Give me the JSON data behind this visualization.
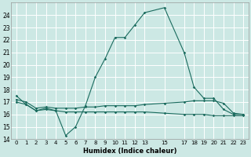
{
  "title": "",
  "xlabel": "Humidex (Indice chaleur)",
  "ylabel": "",
  "background_color": "#cce8e4",
  "grid_color": "#ffffff",
  "line_color": "#1a6b5e",
  "xlim": [
    -0.5,
    23.5
  ],
  "ylim": [
    14,
    25
  ],
  "yticks": [
    14,
    15,
    16,
    17,
    18,
    19,
    20,
    21,
    22,
    23,
    24
  ],
  "xtick_positions": [
    0,
    1,
    2,
    3,
    4,
    5,
    6,
    7,
    8,
    9,
    10,
    11,
    12,
    13,
    15,
    17,
    18,
    19,
    20,
    21,
    22,
    23
  ],
  "xtick_labels": [
    "0",
    "1",
    "2",
    "3",
    "4",
    "5",
    "6",
    "7",
    "8",
    "9",
    "10",
    "11",
    "12",
    "13",
    "15",
    "17",
    "18",
    "19",
    "20",
    "21",
    "22",
    "23"
  ],
  "series1_x": [
    0,
    1,
    2,
    3,
    4,
    5,
    6,
    7,
    8,
    9,
    10,
    11,
    12,
    13,
    15,
    17,
    18,
    19,
    20,
    21,
    22,
    23
  ],
  "series1_y": [
    17.5,
    16.8,
    16.3,
    16.5,
    16.3,
    14.3,
    15.0,
    16.7,
    19.0,
    20.5,
    22.2,
    22.2,
    23.2,
    24.2,
    24.6,
    21.0,
    18.2,
    17.3,
    17.3,
    16.4,
    16.0,
    16.0
  ],
  "series2_x": [
    0,
    1,
    2,
    3,
    4,
    5,
    6,
    7,
    8,
    9,
    10,
    11,
    12,
    13,
    15,
    17,
    18,
    19,
    20,
    21,
    22,
    23
  ],
  "series2_y": [
    17.2,
    17.0,
    16.5,
    16.6,
    16.5,
    16.5,
    16.5,
    16.6,
    16.6,
    16.7,
    16.7,
    16.7,
    16.7,
    16.8,
    16.9,
    17.0,
    17.1,
    17.1,
    17.1,
    16.9,
    16.1,
    16.0
  ],
  "series3_x": [
    0,
    1,
    2,
    3,
    4,
    5,
    6,
    7,
    8,
    9,
    10,
    11,
    12,
    13,
    15,
    17,
    18,
    19,
    20,
    21,
    22,
    23
  ],
  "series3_y": [
    17.0,
    16.8,
    16.3,
    16.4,
    16.3,
    16.2,
    16.2,
    16.2,
    16.2,
    16.2,
    16.2,
    16.2,
    16.2,
    16.2,
    16.1,
    16.0,
    16.0,
    16.0,
    15.9,
    15.9,
    15.9,
    15.9
  ]
}
